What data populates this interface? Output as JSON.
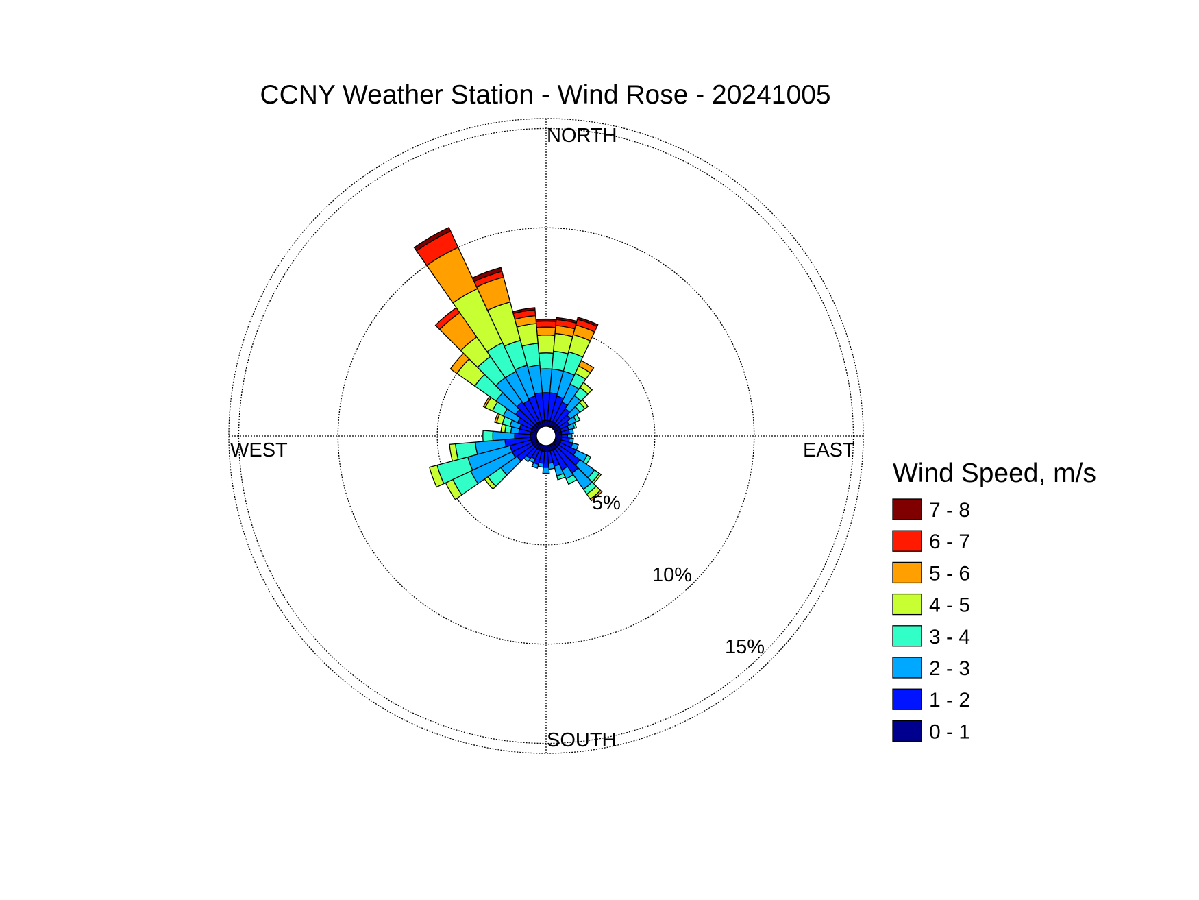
{
  "chart_data": {
    "type": "wind_rose",
    "title": "CCNY Weather Station - Wind Rose - 20241005",
    "directions": {
      "north": "NORTH",
      "east": "EAST",
      "south": "SOUTH",
      "west": "WEST"
    },
    "rings": [
      {
        "value": 5,
        "label": "5%"
      },
      {
        "value": 10,
        "label": "10%"
      },
      {
        "value": 15,
        "label": "15%"
      }
    ],
    "r_max_percent": 15.5,
    "legend": {
      "title": "Wind Speed, m/s",
      "bins": [
        {
          "label": "7 - 8",
          "color": "#800000"
        },
        {
          "label": "6 - 7",
          "color": "#ff1a00"
        },
        {
          "label": "5 - 6",
          "color": "#ffa000"
        },
        {
          "label": "4 - 5",
          "color": "#c8ff32"
        },
        {
          "label": "3 - 4",
          "color": "#32ffc8"
        },
        {
          "label": "2 - 3",
          "color": "#00a8ff"
        },
        {
          "label": "1 - 2",
          "color": "#0014ff"
        },
        {
          "label": "0 - 1",
          "color": "#00008f"
        }
      ]
    },
    "sector_width_deg": 10,
    "speed_bins_order": [
      "0 - 1",
      "1 - 2",
      "2 - 3",
      "3 - 4",
      "4 - 5",
      "5 - 6",
      "6 - 7",
      "7 - 8"
    ],
    "sectors": [
      {
        "direction": 0,
        "values": [
          0.3,
          1.4,
          1.2,
          0.8,
          0.9,
          0.4,
          0.3,
          0.1
        ]
      },
      {
        "direction": 10,
        "values": [
          0.3,
          1.4,
          1.2,
          0.9,
          0.9,
          0.4,
          0.3,
          0.1
        ]
      },
      {
        "direction": 20,
        "values": [
          0.3,
          1.3,
          1.3,
          1.0,
          0.9,
          0.5,
          0.3,
          0.1
        ]
      },
      {
        "direction": 30,
        "values": [
          0.3,
          1.1,
          1.0,
          0.6,
          0.4,
          0.3,
          0.0,
          0.0
        ]
      },
      {
        "direction": 40,
        "values": [
          0.3,
          0.9,
          0.8,
          0.5,
          0.3,
          0.0,
          0.0,
          0.0
        ]
      },
      {
        "direction": 50,
        "values": [
          0.3,
          0.7,
          0.6,
          0.3,
          0.2,
          0.0,
          0.0,
          0.0
        ]
      },
      {
        "direction": 60,
        "values": [
          0.3,
          0.5,
          0.4,
          0.2,
          0.0,
          0.0,
          0.0,
          0.0
        ]
      },
      {
        "direction": 70,
        "values": [
          0.3,
          0.4,
          0.3,
          0.1,
          0.0,
          0.0,
          0.0,
          0.0
        ]
      },
      {
        "direction": 80,
        "values": [
          0.3,
          0.4,
          0.2,
          0.0,
          0.0,
          0.0,
          0.0,
          0.0
        ]
      },
      {
        "direction": 90,
        "values": [
          0.3,
          0.3,
          0.2,
          0.0,
          0.0,
          0.0,
          0.0,
          0.0
        ]
      },
      {
        "direction": 100,
        "values": [
          0.3,
          0.4,
          0.2,
          0.0,
          0.0,
          0.0,
          0.0,
          0.0
        ]
      },
      {
        "direction": 110,
        "values": [
          0.3,
          0.6,
          0.3,
          0.0,
          0.0,
          0.0,
          0.0,
          0.0
        ]
      },
      {
        "direction": 120,
        "values": [
          0.3,
          0.9,
          0.6,
          0.2,
          0.0,
          0.0,
          0.0,
          0.0
        ]
      },
      {
        "direction": 130,
        "values": [
          0.3,
          1.3,
          0.9,
          0.3,
          0.1,
          0.0,
          0.0,
          0.0
        ]
      },
      {
        "direction": 140,
        "values": [
          0.3,
          1.5,
          1.0,
          0.3,
          0.3,
          0.1,
          0.0,
          0.0
        ]
      },
      {
        "direction": 150,
        "values": [
          0.3,
          1.1,
          0.5,
          0.3,
          0.0,
          0.0,
          0.0,
          0.0
        ]
      },
      {
        "direction": 160,
        "values": [
          0.3,
          0.8,
          0.5,
          0.2,
          0.0,
          0.0,
          0.0,
          0.0
        ]
      },
      {
        "direction": 170,
        "values": [
          0.3,
          0.6,
          0.3,
          0.0,
          0.0,
          0.0,
          0.0,
          0.0
        ]
      },
      {
        "direction": 180,
        "values": [
          0.3,
          0.8,
          0.3,
          0.0,
          0.0,
          0.0,
          0.0,
          0.0
        ]
      },
      {
        "direction": 190,
        "values": [
          0.3,
          0.6,
          0.2,
          0.0,
          0.0,
          0.0,
          0.0,
          0.0
        ]
      },
      {
        "direction": 200,
        "values": [
          0.3,
          0.7,
          0.2,
          0.0,
          0.0,
          0.0,
          0.0,
          0.0
        ]
      },
      {
        "direction": 210,
        "values": [
          0.3,
          0.5,
          0.2,
          0.0,
          0.0,
          0.0,
          0.0,
          0.0
        ]
      },
      {
        "direction": 220,
        "values": [
          0.3,
          0.6,
          0.2,
          0.0,
          0.0,
          0.0,
          0.0,
          0.0
        ]
      },
      {
        "direction": 230,
        "values": [
          0.3,
          1.0,
          1.0,
          0.8,
          0.2,
          0.0,
          0.0,
          0.0
        ]
      },
      {
        "direction": 240,
        "values": [
          0.3,
          1.1,
          2.3,
          1.0,
          0.4,
          0.0,
          0.0,
          0.0
        ]
      },
      {
        "direction": 250,
        "values": [
          0.3,
          1.1,
          2.2,
          1.6,
          0.4,
          0.0,
          0.0,
          0.0
        ]
      },
      {
        "direction": 260,
        "values": [
          0.3,
          1.3,
          1.5,
          1.0,
          0.3,
          0.0,
          0.0,
          0.0
        ]
      },
      {
        "direction": 270,
        "values": [
          0.3,
          0.8,
          1.1,
          0.5,
          0.0,
          0.0,
          0.0,
          0.0
        ]
      },
      {
        "direction": 280,
        "values": [
          0.3,
          0.6,
          0.4,
          0.3,
          0.2,
          0.0,
          0.0,
          0.0
        ]
      },
      {
        "direction": 290,
        "values": [
          0.3,
          0.6,
          0.5,
          0.4,
          0.3,
          0.1,
          0.0,
          0.0
        ]
      },
      {
        "direction": 300,
        "values": [
          0.3,
          0.8,
          0.8,
          0.6,
          0.4,
          0.1,
          0.0,
          0.0
        ]
      },
      {
        "direction": 310,
        "values": [
          0.3,
          1.1,
          1.2,
          1.3,
          1.1,
          0.4,
          0.0,
          0.0
        ]
      },
      {
        "direction": 320,
        "values": [
          0.3,
          1.3,
          1.5,
          1.3,
          1.2,
          1.5,
          0.3,
          0.0
        ]
      },
      {
        "direction": 330,
        "values": [
          0.3,
          1.2,
          1.6,
          1.6,
          3.0,
          2.3,
          0.9,
          0.2
        ]
      },
      {
        "direction": 340,
        "values": [
          0.3,
          1.3,
          1.6,
          1.3,
          2.0,
          1.3,
          0.3,
          0.2
        ]
      },
      {
        "direction": 350,
        "values": [
          0.3,
          1.4,
          1.4,
          1.1,
          1.0,
          0.4,
          0.3,
          0.1
        ]
      }
    ]
  }
}
